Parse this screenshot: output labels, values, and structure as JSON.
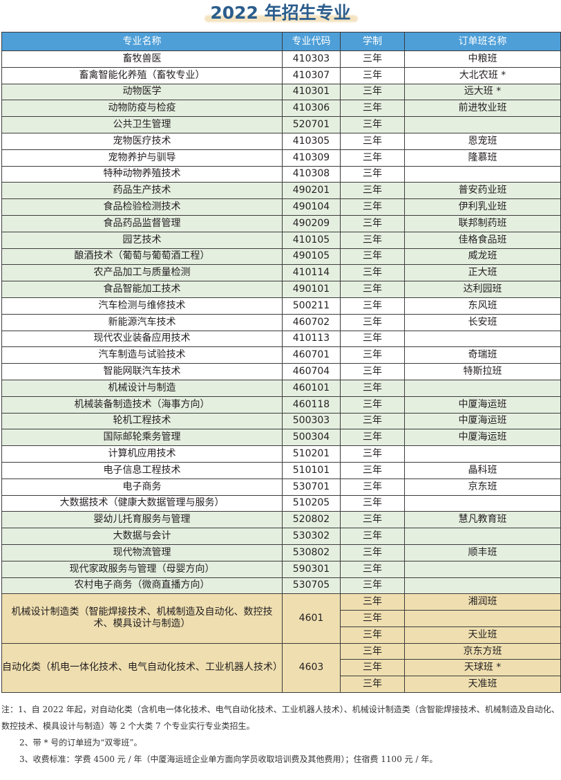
{
  "title": "2022 年招生专业",
  "colors": {
    "header": "#4e9fd8",
    "title": "#2b5d8c",
    "green_row": "#e5efe0",
    "tan_row": "#efdfb0"
  },
  "table": {
    "headers": [
      "专业名称",
      "专业代码",
      "学制",
      "订单班名称"
    ],
    "rows": [
      {
        "name": "畜牧兽医",
        "code": "410303",
        "years": "三年",
        "order": "中粮班",
        "shade": "white"
      },
      {
        "name": "畜禽智能化养殖（畜牧专业）",
        "code": "410307",
        "years": "三年",
        "order": "大北农班 *",
        "shade": "white"
      },
      {
        "name": "动物医学",
        "code": "410301",
        "years": "三年",
        "order": "远大班 *",
        "shade": "green"
      },
      {
        "name": "动物防疫与检疫",
        "code": "410306",
        "years": "三年",
        "order": "前进牧业班",
        "shade": "green"
      },
      {
        "name": "公共卫生管理",
        "code": "520701",
        "years": "三年",
        "order": "",
        "shade": "green"
      },
      {
        "name": "宠物医疗技术",
        "code": "410305",
        "years": "三年",
        "order": "恩宠班",
        "shade": "white"
      },
      {
        "name": "宠物养护与驯导",
        "code": "410309",
        "years": "三年",
        "order": "隆慕班",
        "shade": "white"
      },
      {
        "name": "特种动物养殖技术",
        "code": "410308",
        "years": "三年",
        "order": "",
        "shade": "white"
      },
      {
        "name": "药品生产技术",
        "code": "490201",
        "years": "三年",
        "order": "普安药业班",
        "shade": "green"
      },
      {
        "name": "食品检验检测技术",
        "code": "490104",
        "years": "三年",
        "order": "伊利乳业班",
        "shade": "green"
      },
      {
        "name": "食品药品监督管理",
        "code": "490209",
        "years": "三年",
        "order": "联邦制药班",
        "shade": "green"
      },
      {
        "name": "园艺技术",
        "code": "410105",
        "years": "三年",
        "order": "佳格食品班",
        "shade": "green"
      },
      {
        "name": "酿酒技术（葡萄与葡萄酒工程）",
        "code": "490105",
        "years": "三年",
        "order": "威龙班",
        "shade": "green"
      },
      {
        "name": "农产品加工与质量检测",
        "code": "410114",
        "years": "三年",
        "order": "正大班",
        "shade": "green"
      },
      {
        "name": "食品智能加工技术",
        "code": "490101",
        "years": "三年",
        "order": "达利园班",
        "shade": "green"
      },
      {
        "name": "汽车检测与维修技术",
        "code": "500211",
        "years": "三年",
        "order": "东风班",
        "shade": "white"
      },
      {
        "name": "新能源汽车技术",
        "code": "460702",
        "years": "三年",
        "order": "长安班",
        "shade": "white"
      },
      {
        "name": "现代农业装备应用技术",
        "code": "410113",
        "years": "三年",
        "order": "",
        "shade": "white"
      },
      {
        "name": "汽车制造与试验技术",
        "code": "460701",
        "years": "三年",
        "order": "奇瑞班",
        "shade": "white"
      },
      {
        "name": "智能网联汽车技术",
        "code": "460704",
        "years": "三年",
        "order": "特斯拉班",
        "shade": "white"
      },
      {
        "name": "机械设计与制造",
        "code": "460101",
        "years": "三年",
        "order": "",
        "shade": "green"
      },
      {
        "name": "机械装备制造技术（海事方向）",
        "code": "460118",
        "years": "三年",
        "order": "中厦海运班",
        "shade": "green"
      },
      {
        "name": "轮机工程技术",
        "code": "500303",
        "years": "三年",
        "order": "中厦海运班",
        "shade": "green"
      },
      {
        "name": "国际邮轮乘务管理",
        "code": "500304",
        "years": "三年",
        "order": "中厦海运班",
        "shade": "green"
      },
      {
        "name": "计算机应用技术",
        "code": "510201",
        "years": "三年",
        "order": "",
        "shade": "white"
      },
      {
        "name": "电子信息工程技术",
        "code": "510101",
        "years": "三年",
        "order": "晶科班",
        "shade": "white"
      },
      {
        "name": "电子商务",
        "code": "530701",
        "years": "三年",
        "order": "京东班",
        "shade": "white"
      },
      {
        "name": "大数据技术（健康大数据管理与服务）",
        "code": "510205",
        "years": "三年",
        "order": "",
        "shade": "white"
      },
      {
        "name": "婴幼儿托育服务与管理",
        "code": "520802",
        "years": "三年",
        "order": "慧凡教育班",
        "shade": "green"
      },
      {
        "name": "大数据与会计",
        "code": "530302",
        "years": "三年",
        "order": "",
        "shade": "green"
      },
      {
        "name": "现代物流管理",
        "code": "530802",
        "years": "三年",
        "order": "顺丰班",
        "shade": "green"
      },
      {
        "name": "现代家政服务与管理（母婴方向）",
        "code": "590301",
        "years": "三年",
        "order": "",
        "shade": "green"
      },
      {
        "name": "农村电子商务（微商直播方向）",
        "code": "530705",
        "years": "三年",
        "order": "",
        "shade": "green"
      }
    ],
    "groups": [
      {
        "name": "机械设计制造类（智能焊接技术、机械制造及自动化、数控技术、模具设计与制造）",
        "code": "4601",
        "subrows": [
          {
            "years": "三年",
            "order": "湘润班"
          },
          {
            "years": "三年",
            "order": ""
          },
          {
            "years": "三年",
            "order": "天业班"
          }
        ]
      },
      {
        "name": "自动化类（机电一体化技术、电气自动化技术、工业机器人技术）",
        "code": "4603",
        "subrows": [
          {
            "years": "三年",
            "order": "京东方班"
          },
          {
            "years": "三年",
            "order": "天球班 *"
          },
          {
            "years": "三年",
            "order": "天准班"
          }
        ]
      }
    ]
  },
  "notes": [
    "注：1、自 2022 年起，对自动化类（含机电一体化技术、电气自动化技术、工业机器人技术）、机械设计制造类（含智能焊接技术、机械制造及自动化、数控技术、模具设计与制造）等 2 个大类 7 个专业实行专业类招生。",
    "2、带 * 号的订单班为“双零班”。",
    "3、收费标准：学费 4500 元 / 年（中厦海运班企业单方面向学员收取培训费及其他费用）；住宿费 1100 元 / 年。"
  ]
}
